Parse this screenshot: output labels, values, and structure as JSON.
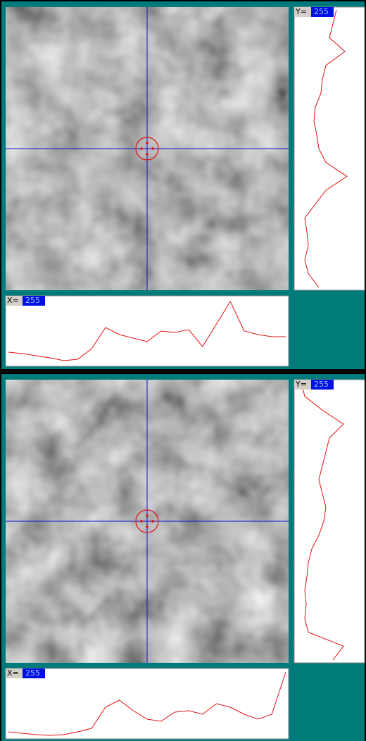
{
  "panels": [
    {
      "y_label": "Y=",
      "y_value": "255",
      "x_label": "X=",
      "x_value": "255",
      "x_profile": [
        20,
        18,
        15,
        12,
        8,
        10,
        25,
        55,
        45,
        40,
        35,
        50,
        48,
        52,
        28,
        60,
        92,
        50,
        45,
        42,
        42
      ],
      "y_profile": [
        60,
        55,
        50,
        72,
        45,
        40,
        38,
        30,
        28,
        32,
        35,
        45,
        75,
        45,
        30,
        15,
        18,
        20,
        15,
        20,
        35
      ]
    },
    {
      "y_label": "Y=",
      "y_value": "255",
      "x_label": "X=",
      "x_value": "255",
      "x_profile": [
        10,
        8,
        6,
        5,
        6,
        10,
        15,
        45,
        55,
        40,
        28,
        25,
        38,
        40,
        35,
        50,
        45,
        35,
        28,
        35,
        95
      ],
      "y_profile": [
        10,
        15,
        40,
        70,
        50,
        45,
        40,
        35,
        40,
        45,
        42,
        35,
        25,
        20,
        18,
        15,
        17,
        15,
        20,
        70,
        55
      ]
    }
  ]
}
